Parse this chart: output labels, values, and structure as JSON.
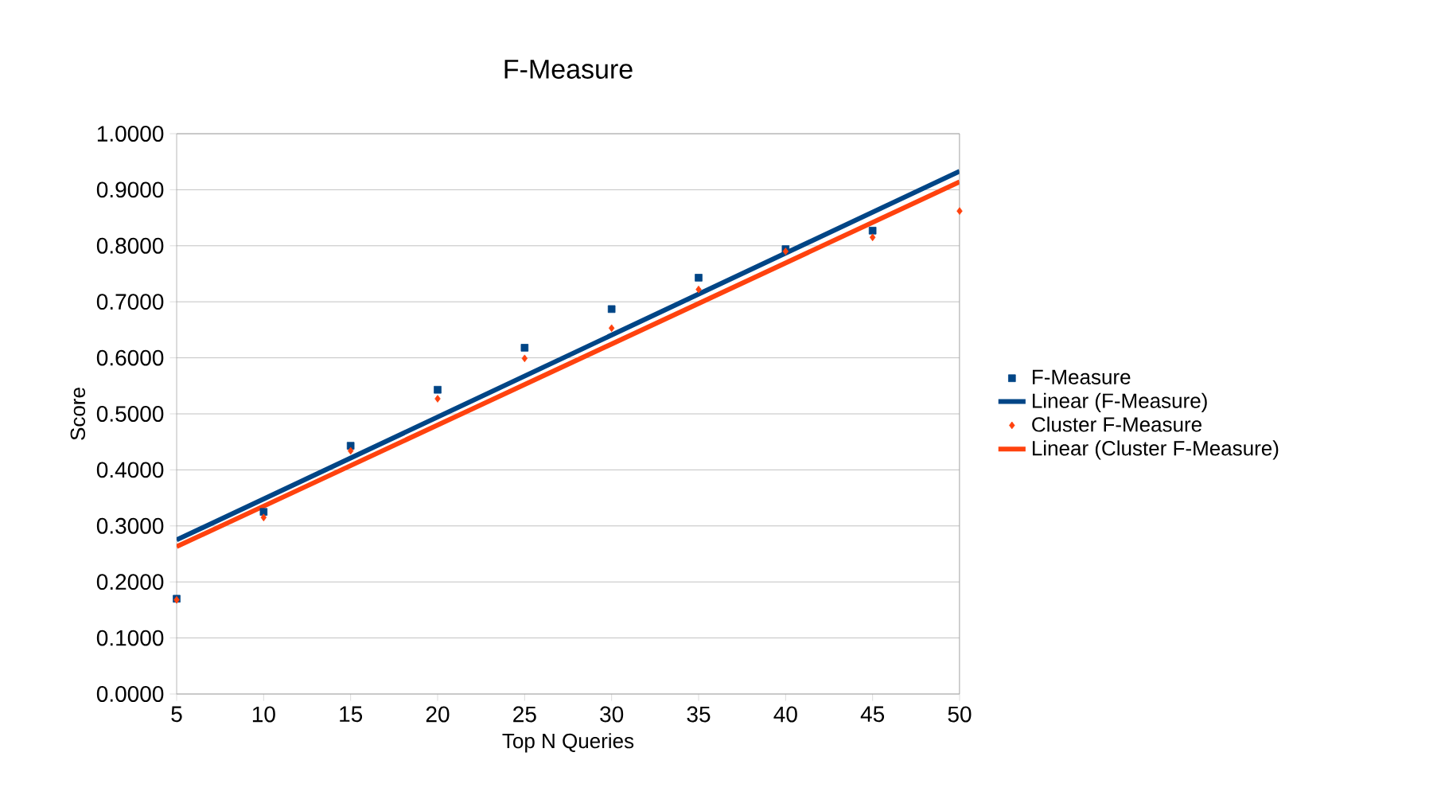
{
  "chart_data": {
    "type": "scatter",
    "title": "F-Measure",
    "xlabel": "Top N Queries",
    "ylabel": "Score",
    "xlim": [
      5,
      50
    ],
    "xticks": [
      5,
      10,
      15,
      20,
      25,
      30,
      35,
      40,
      45,
      50
    ],
    "ylim": [
      0,
      1
    ],
    "yticks": [
      {
        "value": 0,
        "label": "0.0000"
      },
      {
        "value": 0.1,
        "label": "0.1000"
      },
      {
        "value": 0.2,
        "label": "0.2000"
      },
      {
        "value": 0.3,
        "label": "0.3000"
      },
      {
        "value": 0.4,
        "label": "0.4000"
      },
      {
        "value": 0.5,
        "label": "0.5000"
      },
      {
        "value": 0.6,
        "label": "0.6000"
      },
      {
        "value": 0.7,
        "label": "0.7000"
      },
      {
        "value": 0.8,
        "label": "0.8000"
      },
      {
        "value": 0.9,
        "label": "0.9000"
      },
      {
        "value": 1,
        "label": "1.0000"
      }
    ],
    "grid": "y",
    "legend": "right",
    "series": [
      {
        "name": "F-Measure",
        "marker": "square",
        "color": "#004586",
        "x": [
          5,
          10,
          15,
          20,
          25,
          30,
          35,
          40,
          45
        ],
        "values": [
          0.17,
          0.325,
          0.443,
          0.543,
          0.618,
          0.687,
          0.743,
          0.794,
          0.827
        ]
      },
      {
        "name": "Linear (F-Measure)",
        "type": "line",
        "marker": "none",
        "color": "#004586",
        "x": [
          5,
          50
        ],
        "values": [
          0.275,
          0.933
        ]
      },
      {
        "name": "Cluster F-Measure",
        "marker": "diamond",
        "color": "#ff420e",
        "x": [
          5,
          10,
          15,
          20,
          25,
          30,
          35,
          40,
          45,
          50
        ],
        "values": [
          0.168,
          0.315,
          0.434,
          0.527,
          0.599,
          0.653,
          0.722,
          0.79,
          0.815,
          0.862
        ]
      },
      {
        "name": "Linear (Cluster F-Measure)",
        "type": "line",
        "marker": "none",
        "color": "#ff420e",
        "x": [
          5,
          50
        ],
        "values": [
          0.263,
          0.914
        ]
      }
    ]
  }
}
